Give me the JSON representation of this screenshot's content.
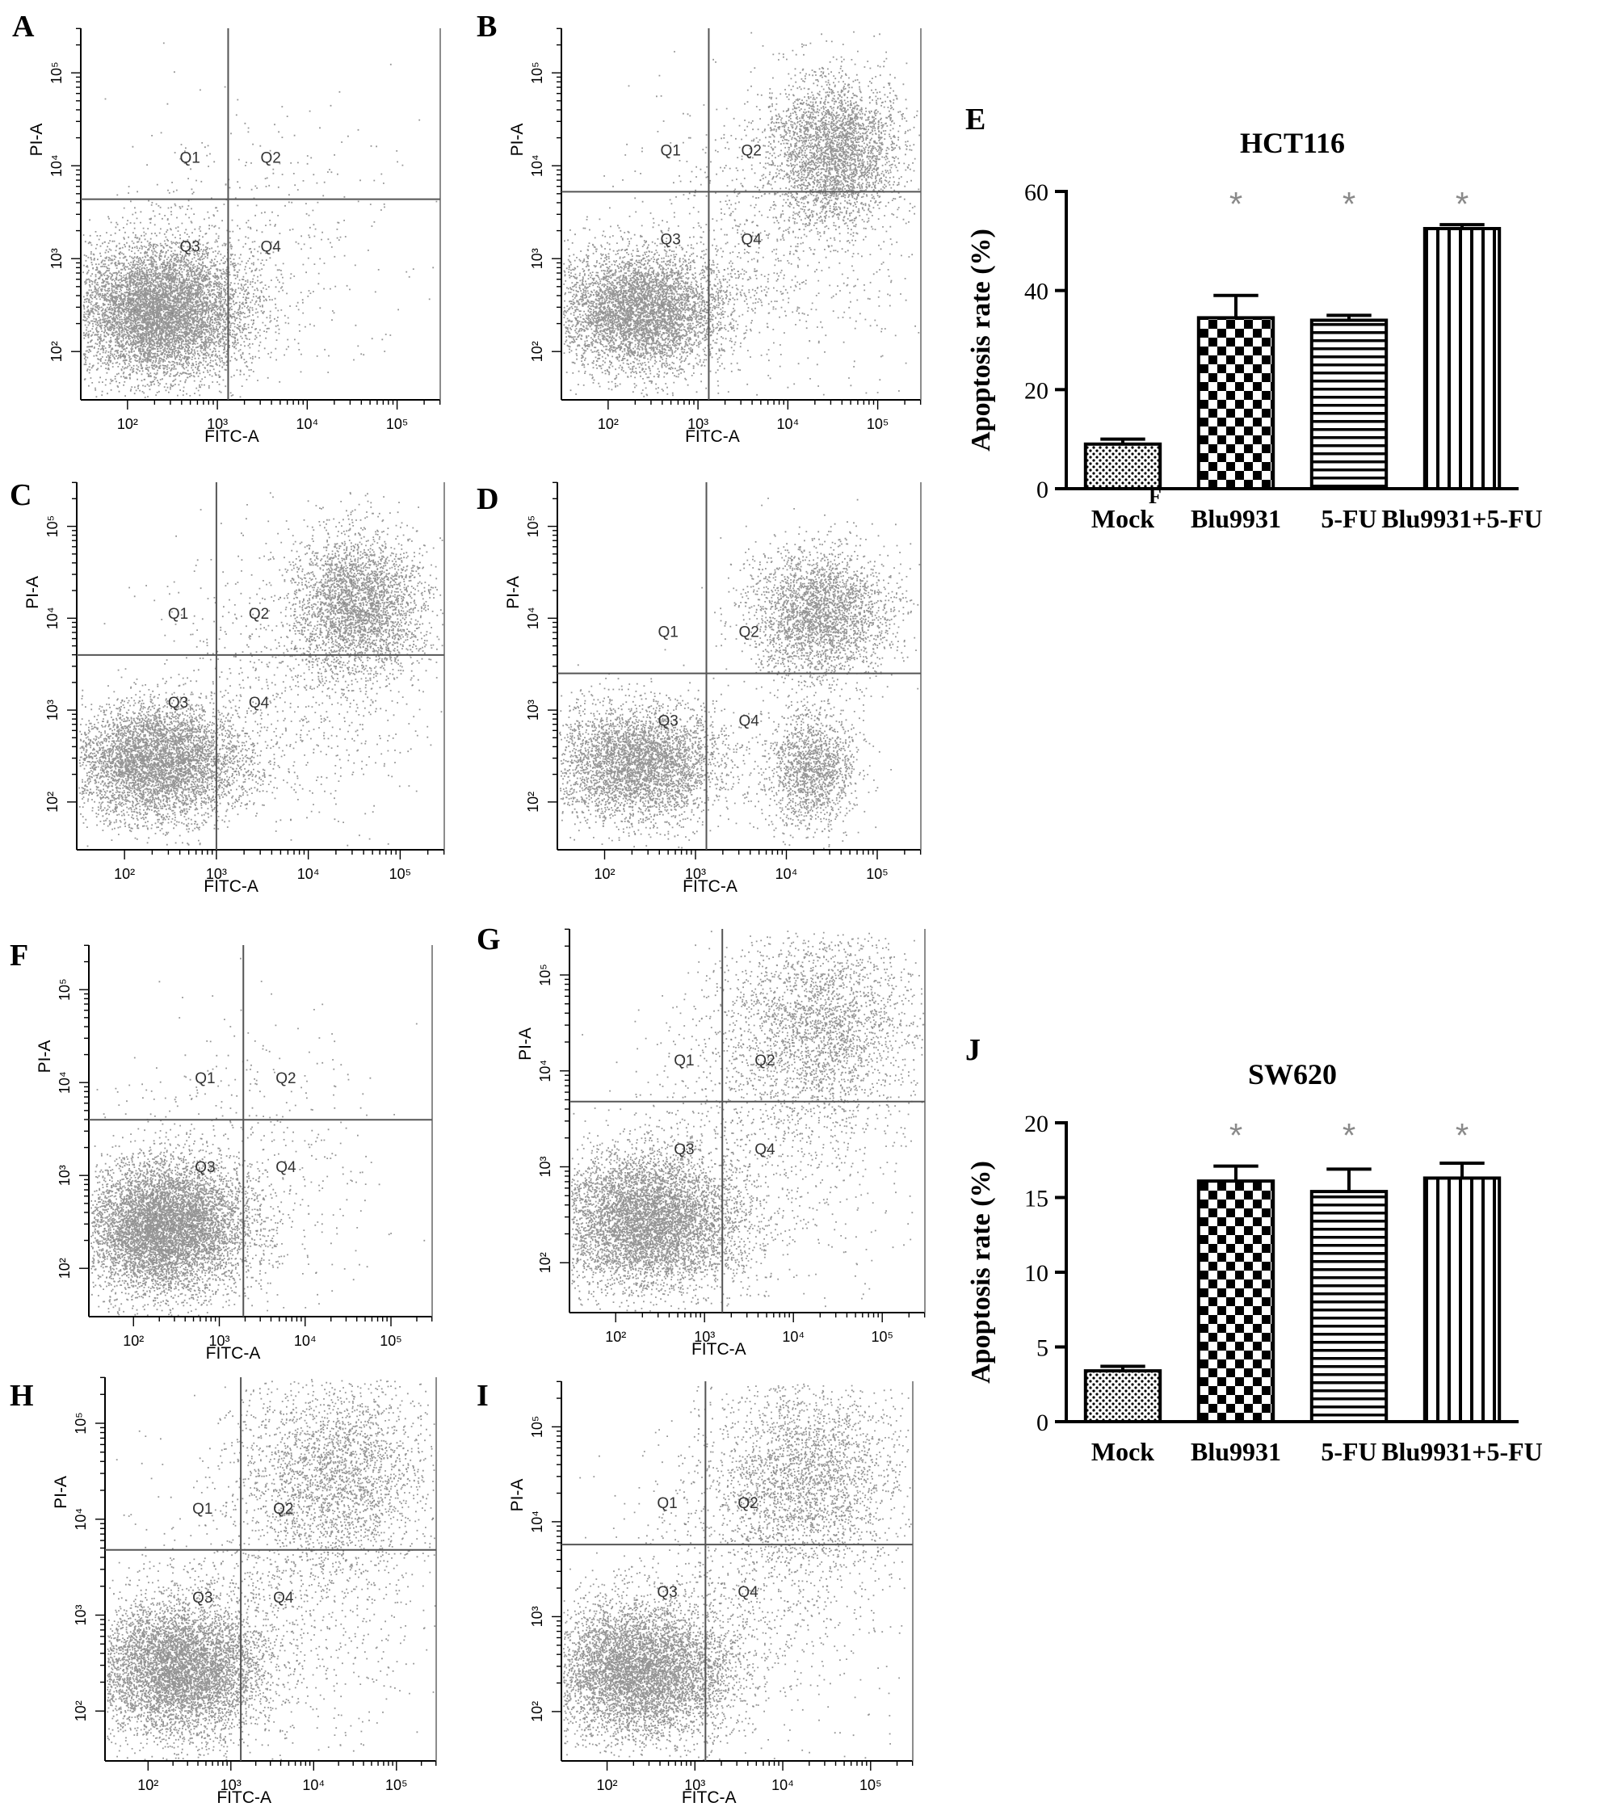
{
  "flow_panels": [
    {
      "letter": "A",
      "xlabel": "FITC-A",
      "ylabel": "PI-A",
      "q": [
        "Q1",
        "Q2",
        "Q3",
        "Q4"
      ],
      "cluster": "live",
      "dim": false
    },
    {
      "letter": "B",
      "xlabel": "FITC-A",
      "ylabel": "PI-A",
      "q": [
        "Q1",
        "Q2",
        "Q3",
        "Q4"
      ],
      "cluster": "both",
      "dim": false
    },
    {
      "letter": "C",
      "xlabel": "FITC-A",
      "ylabel": "PI-A",
      "q": [
        "Q1",
        "Q2",
        "Q3",
        "Q4"
      ],
      "cluster": "both",
      "dim": false
    },
    {
      "letter": "D",
      "xlabel": "FITC-A",
      "ylabel": "PI-A",
      "q": [
        "Q1",
        "Q2",
        "Q3",
        "Q4"
      ],
      "cluster": "three",
      "dim": false
    },
    {
      "letter": "F",
      "xlabel": "FITC-A",
      "ylabel": "PI-A",
      "q": [
        "Q1",
        "Q2",
        "Q3",
        "Q4"
      ],
      "cluster": "live",
      "dim": false
    },
    {
      "letter": "G",
      "xlabel": "FITC-A",
      "ylabel": "PI-A",
      "q": [
        "Q1",
        "Q2",
        "Q3",
        "Q4"
      ],
      "cluster": "diag",
      "dim": false
    },
    {
      "letter": "H",
      "xlabel": "FITC-A",
      "ylabel": "PI-A",
      "q": [
        "Q1",
        "Q2",
        "Q3",
        "Q4"
      ],
      "cluster": "diag",
      "dim": false
    },
    {
      "letter": "I",
      "xlabel": "FITC-A",
      "ylabel": "PI-A",
      "q": [
        "Q1",
        "Q2",
        "Q3",
        "Q4"
      ],
      "cluster": "diag",
      "dim": false
    }
  ],
  "axis_ticks": [
    "10²",
    "10³",
    "10⁴",
    "10⁵"
  ],
  "chart_data": [
    {
      "type": "bar",
      "letter": "E",
      "title": "HCT116",
      "ylabel": "Apoptosis rate (%)",
      "categories": [
        "Mock",
        "Blu9931",
        "5-FU",
        "Blu9931+5-FU"
      ],
      "values": [
        9,
        34.5,
        34,
        52.5
      ],
      "errors": [
        1,
        4.5,
        1,
        0.8
      ],
      "significance": [
        "",
        "*",
        "*",
        "*"
      ],
      "ylim": [
        0,
        60
      ],
      "yticks": [
        0,
        20,
        40,
        60
      ],
      "patterns": [
        "dots",
        "checker",
        "hlines",
        "vlines"
      ],
      "stray_label": "F"
    },
    {
      "type": "bar",
      "letter": "J",
      "title": "SW620",
      "ylabel": "Apoptosis rate (%)",
      "categories": [
        "Mock",
        "Blu9931",
        "5-FU",
        "Blu9931+5-FU"
      ],
      "values": [
        3.4,
        16.1,
        15.4,
        16.3
      ],
      "errors": [
        0.3,
        1,
        1.5,
        1
      ],
      "significance": [
        "",
        "*",
        "*",
        "*"
      ],
      "ylim": [
        0,
        20
      ],
      "yticks": [
        0,
        5,
        10,
        15,
        20
      ],
      "patterns": [
        "dots",
        "checker",
        "hlines",
        "vlines"
      ],
      "stray_label": ""
    }
  ],
  "colors": {
    "dot": "#7a7a7a",
    "axis": "#000000",
    "star": "#8a8a8a",
    "gate": "#555555"
  }
}
